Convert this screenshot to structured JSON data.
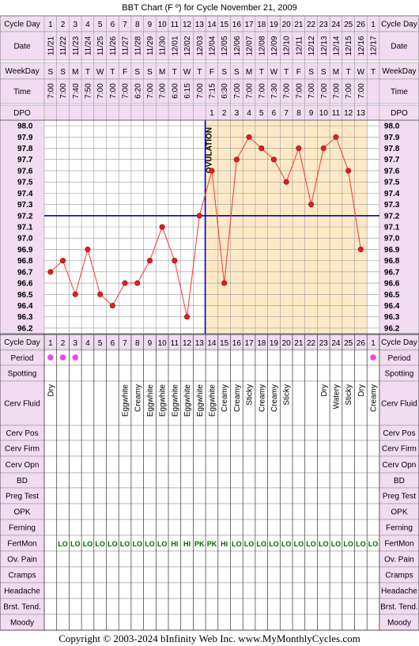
{
  "title": "BBT Chart (F º) for Cycle November 21, 2009",
  "footer": "Copyright © 2003-2024 bInfinity Web Inc.    www.MyMonthlyCycles.com",
  "colors": {
    "line": "#ff3333",
    "coverline": "#0000cc",
    "ovulation_line": "#0000cc",
    "post_ovulation_fill": "#fde9c6",
    "header_bg": "#f2dcf2",
    "period_dot": "#ee44ee",
    "fertmon_text": "#006600"
  },
  "row_labels": {
    "cycle_day": "Cycle Day",
    "date": "Date",
    "weekday": "WeekDay",
    "time": "Time",
    "dpo": "DPO",
    "period": "Period",
    "spotting": "Spotting",
    "cerv_fluid": "Cerv Fluid",
    "cerv_pos": "Cerv Pos",
    "cerv_firm": "Cerv Firm",
    "cerv_opn": "Cerv Opn",
    "bd": "BD",
    "preg_test": "Preg Test",
    "opk": "OPK",
    "ferning": "Ferning",
    "fertmon": "FertMon",
    "ov_pain": "Ov. Pain",
    "cramps": "Cramps",
    "headache": "Headache",
    "brst_tend": "Brst. Tend.",
    "moody": "Moody"
  },
  "ovulation_label": "OVULATION",
  "days": [
    "1",
    "2",
    "3",
    "4",
    "5",
    "6",
    "7",
    "8",
    "9",
    "10",
    "11",
    "12",
    "13",
    "14",
    "15",
    "16",
    "17",
    "18",
    "19",
    "20",
    "21",
    "22",
    "23",
    "24",
    "25",
    "26",
    "1"
  ],
  "dates": [
    "11/21",
    "11/22",
    "11/23",
    "11/24",
    "11/25",
    "11/26",
    "11/27",
    "11/28",
    "11/29",
    "11/30",
    "12/01",
    "12/02",
    "12/03",
    "12/04",
    "12/05",
    "12/06",
    "12/07",
    "12/08",
    "12/09",
    "12/10",
    "12/11",
    "12/12",
    "12/13",
    "12/14",
    "12/15",
    "12/16",
    "12/17"
  ],
  "weekdays": [
    "S",
    "S",
    "M",
    "T",
    "W",
    "T",
    "F",
    "S",
    "S",
    "M",
    "T",
    "W",
    "T",
    "F",
    "S",
    "S",
    "M",
    "T",
    "W",
    "T",
    "F",
    "S",
    "S",
    "M",
    "T",
    "W",
    "T"
  ],
  "times": [
    "7:00",
    "7:00",
    "7:40",
    "7:50",
    "7:00",
    "7:00",
    "7:00",
    "6:20",
    "7:00",
    "7:00",
    "6:00",
    "6:15",
    "7:00",
    "7:15",
    "6:30",
    "7:00",
    "7:00",
    "7:00",
    "7:30",
    "7:00",
    "7:00",
    "7:00",
    "7:00",
    "7:00",
    "7:00",
    "7:00",
    ""
  ],
  "dpo": [
    "",
    "",
    "",
    "",
    "",
    "",
    "",
    "",
    "",
    "",
    "",
    "",
    "",
    "1",
    "2",
    "3",
    "4",
    "5",
    "6",
    "7",
    "8",
    "9",
    "10",
    "11",
    "12",
    "13",
    ""
  ],
  "period": [
    true,
    true,
    true,
    false,
    false,
    false,
    false,
    false,
    false,
    false,
    false,
    false,
    false,
    false,
    false,
    false,
    false,
    false,
    false,
    false,
    false,
    false,
    false,
    false,
    false,
    false,
    true
  ],
  "cerv_fluid": [
    "Dry",
    "",
    "",
    "",
    "",
    "",
    "Eggwhite",
    "Creamy",
    "Eggwhite",
    "Eggwhite",
    "Eggwhite",
    "Eggwhite",
    "Eggwhite",
    "Eggwhite",
    "Creamy",
    "Creamy",
    "Sticky",
    "Creamy",
    "Creamy",
    "Sticky",
    "",
    "",
    "Dry",
    "Watery",
    "Sticky",
    "Dry",
    "Creamy"
  ],
  "fertmon": [
    "",
    "LO",
    "LO",
    "LO",
    "LO",
    "LO",
    "LO",
    "LO",
    "LO",
    "LO",
    "HI",
    "HI",
    "PK",
    "PK",
    "HI",
    "LO",
    "LO",
    "LO",
    "LO",
    "LO",
    "LO",
    "LO",
    "LO",
    "LO",
    "LO",
    "LO",
    "LO"
  ],
  "chart_data": {
    "type": "line",
    "title": "BBT Chart (F º) for Cycle November 21, 2009",
    "x": [
      1,
      2,
      3,
      4,
      5,
      6,
      7,
      8,
      9,
      10,
      11,
      12,
      13,
      14,
      15,
      16,
      17,
      18,
      19,
      20,
      21,
      22,
      23,
      24,
      25,
      26
    ],
    "series": [
      {
        "values": [
          96.7,
          96.8,
          96.5,
          96.9,
          96.5,
          96.4,
          96.6,
          96.6,
          96.8,
          97.1,
          96.8,
          96.3,
          97.2,
          97.6,
          96.6,
          97.7,
          97.9,
          97.8,
          97.7,
          97.5,
          97.8,
          97.3,
          97.8,
          97.9,
          97.6,
          96.9
        ]
      }
    ],
    "ylim": [
      96.2,
      98.0
    ],
    "yticks": [
      "98.0",
      "97.9",
      "97.8",
      "97.7",
      "97.6",
      "97.5",
      "97.4",
      "97.3",
      "97.2",
      "97.1",
      "97.0",
      "96.9",
      "96.8",
      "96.7",
      "96.6",
      "96.5",
      "96.4",
      "96.3",
      "96.2"
    ],
    "coverline": 97.2,
    "ovulation_day": 13,
    "grid": true
  }
}
